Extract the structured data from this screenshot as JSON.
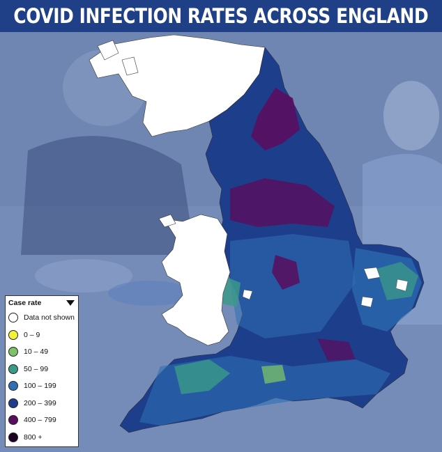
{
  "title": "COVID INFECTION RATES ACROSS ENGLAND",
  "legend": {
    "title": "Case rate",
    "toggle_icon": "triangle-down-icon",
    "items": [
      {
        "label": "Data not shown",
        "color": "#ffffff"
      },
      {
        "label": "0 – 9",
        "color": "#f2f23a"
      },
      {
        "label": "10 – 49",
        "color": "#7dc168"
      },
      {
        "label": "50 – 99",
        "color": "#3a9a88"
      },
      {
        "label": "100 – 199",
        "color": "#2d6fb5"
      },
      {
        "label": "200 – 399",
        "color": "#1d3e8a"
      },
      {
        "label": "400 – 799",
        "color": "#5a0d5e"
      },
      {
        "label": "800 +",
        "color": "#1c0321"
      }
    ]
  },
  "map": {
    "no_data_regions": [
      "Scotland",
      "Wales"
    ],
    "region_colors": {
      "no_data": "#ffffff",
      "low": "#3a9a88",
      "mid": "#2d6fb5",
      "high": "#1d3e8a",
      "very_high": "#5a0d5e"
    }
  },
  "background": {
    "tint": "#6f86b3",
    "header_color": "#1f3f86"
  }
}
